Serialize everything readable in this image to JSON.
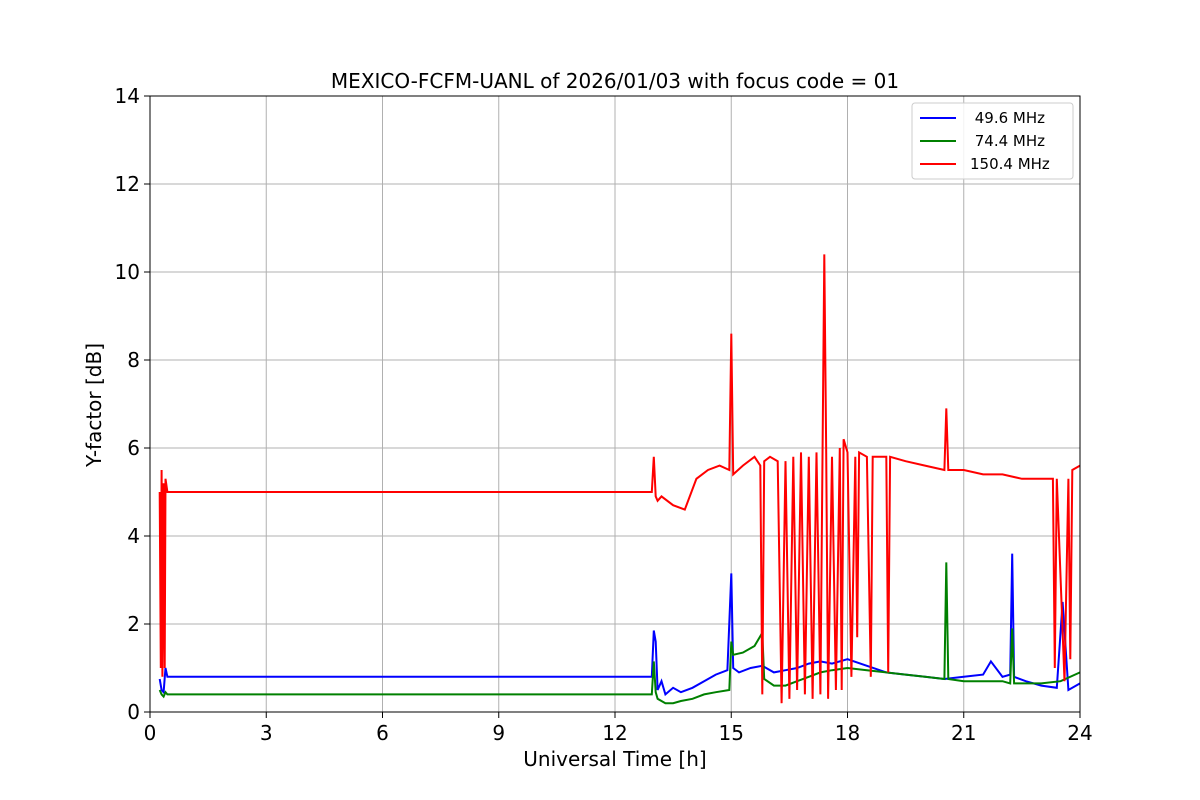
{
  "chart_data": {
    "type": "line",
    "title": "MEXICO-FCFM-UANL of 2026/01/03 with focus code = 01",
    "xlabel": "Universal Time [h]",
    "ylabel": "Y-factor [dB]",
    "xlim": [
      0,
      24
    ],
    "ylim": [
      0,
      14
    ],
    "xticks": [
      0,
      3,
      6,
      9,
      12,
      15,
      18,
      21,
      24
    ],
    "yticks": [
      0,
      2,
      4,
      6,
      8,
      10,
      12,
      14
    ],
    "grid": true,
    "legend_position": "top-right",
    "series": [
      {
        "name": " 49.6 MHz",
        "color": "#0000ff",
        "x": [
          0.25,
          0.3,
          0.35,
          0.4,
          0.45,
          12.95,
          13.0,
          13.05,
          13.1,
          13.2,
          13.3,
          13.5,
          13.7,
          14.0,
          14.3,
          14.6,
          14.9,
          15.0,
          15.05,
          15.2,
          15.5,
          15.8,
          16.1,
          16.4,
          16.7,
          17.0,
          17.3,
          17.6,
          18.0,
          18.5,
          19.0,
          19.5,
          20.0,
          20.5,
          21.0,
          21.5,
          21.7,
          22.0,
          22.2,
          22.25,
          22.3,
          22.6,
          23.0,
          23.4,
          23.55,
          23.7,
          24.0
        ],
        "y": [
          0.75,
          0.5,
          0.45,
          1.0,
          0.8,
          0.8,
          1.85,
          1.6,
          0.5,
          0.7,
          0.4,
          0.55,
          0.45,
          0.55,
          0.7,
          0.85,
          0.95,
          3.15,
          1.0,
          0.9,
          1.0,
          1.05,
          0.9,
          0.95,
          1.0,
          1.1,
          1.15,
          1.1,
          1.2,
          1.05,
          0.9,
          0.85,
          0.8,
          0.75,
          0.8,
          0.85,
          1.15,
          0.8,
          0.85,
          3.6,
          0.8,
          0.7,
          0.6,
          0.55,
          2.5,
          0.5,
          0.65
        ]
      },
      {
        "name": " 74.4 MHz",
        "color": "#008000",
        "x": [
          0.25,
          0.3,
          0.35,
          0.4,
          0.45,
          12.95,
          13.0,
          13.05,
          13.1,
          13.3,
          13.5,
          13.7,
          14.0,
          14.3,
          14.6,
          14.95,
          15.0,
          15.05,
          15.3,
          15.6,
          15.8,
          15.85,
          16.1,
          16.4,
          16.7,
          17.0,
          17.3,
          17.6,
          18.0,
          18.5,
          19.0,
          19.5,
          20.0,
          20.5,
          20.55,
          20.6,
          21.0,
          21.5,
          22.0,
          22.2,
          22.25,
          22.3,
          22.6,
          23.0,
          23.5,
          24.0
        ],
        "y": [
          0.5,
          0.4,
          0.35,
          0.45,
          0.4,
          0.4,
          1.15,
          0.45,
          0.3,
          0.2,
          0.2,
          0.25,
          0.3,
          0.4,
          0.45,
          0.5,
          1.6,
          1.3,
          1.35,
          1.5,
          1.8,
          0.75,
          0.6,
          0.6,
          0.7,
          0.8,
          0.9,
          0.95,
          1.0,
          0.95,
          0.9,
          0.85,
          0.8,
          0.75,
          3.4,
          0.75,
          0.7,
          0.7,
          0.7,
          0.65,
          1.9,
          0.65,
          0.65,
          0.65,
          0.7,
          0.9
        ]
      },
      {
        "name": "150.4 MHz",
        "color": "#ff0000",
        "x": [
          0.25,
          0.28,
          0.3,
          0.32,
          0.35,
          0.38,
          0.4,
          0.45,
          12.95,
          13.0,
          13.05,
          13.1,
          13.2,
          13.5,
          13.8,
          14.1,
          14.4,
          14.7,
          14.95,
          15.0,
          15.05,
          15.3,
          15.6,
          15.75,
          15.8,
          15.85,
          16.0,
          16.2,
          16.3,
          16.4,
          16.5,
          16.6,
          16.7,
          16.8,
          16.9,
          17.0,
          17.1,
          17.2,
          17.3,
          17.4,
          17.45,
          17.5,
          17.6,
          17.7,
          17.8,
          17.85,
          17.9,
          18.0,
          18.1,
          18.2,
          18.25,
          18.3,
          18.5,
          18.6,
          18.65,
          18.8,
          19.0,
          19.05,
          19.1,
          19.5,
          20.0,
          20.5,
          20.55,
          20.6,
          21.0,
          21.5,
          22.0,
          22.5,
          23.0,
          23.3,
          23.35,
          23.4,
          23.6,
          23.7,
          23.75,
          23.8,
          24.0
        ],
        "y": [
          5.0,
          1.0,
          5.5,
          0.8,
          5.2,
          1.0,
          5.3,
          5.0,
          5.0,
          5.8,
          4.9,
          4.8,
          4.9,
          4.7,
          4.6,
          5.3,
          5.5,
          5.6,
          5.5,
          8.6,
          5.4,
          5.6,
          5.8,
          5.6,
          0.4,
          5.7,
          5.8,
          5.7,
          0.2,
          5.7,
          0.3,
          5.8,
          0.5,
          5.9,
          0.4,
          5.8,
          0.3,
          5.9,
          0.4,
          10.4,
          5.9,
          0.3,
          5.8,
          0.5,
          6.0,
          0.5,
          6.2,
          5.9,
          0.8,
          5.8,
          1.7,
          5.9,
          5.8,
          0.8,
          5.8,
          5.8,
          5.8,
          0.9,
          5.8,
          5.7,
          5.6,
          5.5,
          6.9,
          5.5,
          5.5,
          5.4,
          5.4,
          5.3,
          5.3,
          5.3,
          1.0,
          5.3,
          0.7,
          5.3,
          1.2,
          5.5,
          5.6
        ]
      }
    ]
  }
}
